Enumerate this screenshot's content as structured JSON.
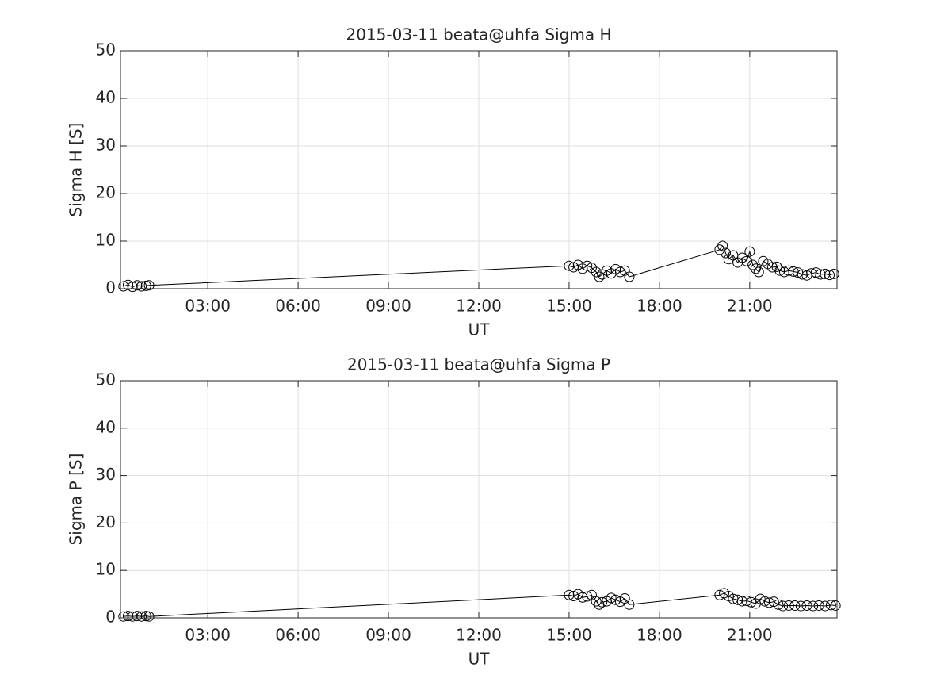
{
  "chart_data": [
    {
      "type": "line",
      "title": "2015-03-11  beata@uhfa Sigma H",
      "xlabel": "UT",
      "ylabel": "Sigma H [S]",
      "color": "#000000",
      "marker": "circle",
      "grid": true,
      "xlim": [
        0.1,
        23.9
      ],
      "ylim": [
        0,
        50
      ],
      "xticks": [
        {
          "value": 3,
          "label": "03:00"
        },
        {
          "value": 6,
          "label": "06:00"
        },
        {
          "value": 9,
          "label": "09:00"
        },
        {
          "value": 12,
          "label": "12:00"
        },
        {
          "value": 15,
          "label": "15:00"
        },
        {
          "value": 18,
          "label": "18:00"
        },
        {
          "value": 21,
          "label": "21:00"
        }
      ],
      "yticks": [
        0,
        10,
        20,
        30,
        40,
        50
      ],
      "x": [
        0.2,
        0.35,
        0.5,
        0.65,
        0.8,
        0.95,
        1.05,
        15.0,
        15.15,
        15.3,
        15.45,
        15.6,
        15.75,
        15.9,
        16.0,
        16.1,
        16.25,
        16.4,
        16.55,
        16.7,
        16.85,
        17.0,
        20.0,
        20.1,
        20.2,
        20.3,
        20.45,
        20.6,
        20.75,
        20.9,
        21.0,
        21.1,
        21.2,
        21.3,
        21.45,
        21.6,
        21.75,
        21.9,
        22.0,
        22.15,
        22.3,
        22.45,
        22.6,
        22.75,
        22.9,
        23.05,
        23.2,
        23.35,
        23.5,
        23.65,
        23.8
      ],
      "values": [
        0.5,
        0.8,
        0.4,
        0.7,
        0.5,
        0.6,
        0.7,
        4.8,
        4.5,
        5.0,
        4.2,
        4.8,
        4.4,
        3.5,
        2.5,
        3.0,
        3.8,
        3.2,
        4.1,
        3.5,
        3.8,
        2.5,
        8.2,
        9.0,
        7.5,
        6.2,
        7.0,
        5.5,
        6.5,
        5.8,
        7.8,
        5.0,
        4.2,
        3.5,
        5.8,
        5.2,
        4.5,
        4.6,
        3.8,
        3.5,
        3.8,
        3.6,
        3.4,
        3.0,
        2.8,
        3.2,
        3.4,
        3.0,
        3.1,
        2.9,
        3.1
      ]
    },
    {
      "type": "line",
      "title": "2015-03-11  beata@uhfa Sigma P",
      "xlabel": "UT",
      "ylabel": "Sigma P [S]",
      "color": "#000000",
      "marker": "circle",
      "grid": true,
      "xlim": [
        0.1,
        23.9
      ],
      "ylim": [
        0,
        50
      ],
      "xticks": [
        {
          "value": 3,
          "label": "03:00"
        },
        {
          "value": 6,
          "label": "06:00"
        },
        {
          "value": 9,
          "label": "09:00"
        },
        {
          "value": 12,
          "label": "12:00"
        },
        {
          "value": 15,
          "label": "15:00"
        },
        {
          "value": 18,
          "label": "18:00"
        },
        {
          "value": 21,
          "label": "21:00"
        }
      ],
      "yticks": [
        0,
        10,
        20,
        30,
        40,
        50
      ],
      "x": [
        0.2,
        0.35,
        0.5,
        0.65,
        0.8,
        0.95,
        1.05,
        15.0,
        15.15,
        15.3,
        15.45,
        15.6,
        15.75,
        15.9,
        16.0,
        16.1,
        16.25,
        16.4,
        16.55,
        16.7,
        16.85,
        17.0,
        20.0,
        20.15,
        20.3,
        20.45,
        20.6,
        20.75,
        20.9,
        21.05,
        21.2,
        21.35,
        21.5,
        21.65,
        21.8,
        21.95,
        22.1,
        22.3,
        22.5,
        22.7,
        22.9,
        23.1,
        23.3,
        23.5,
        23.7,
        23.85
      ],
      "values": [
        0.3,
        0.4,
        0.3,
        0.4,
        0.3,
        0.4,
        0.3,
        4.8,
        4.6,
        5.0,
        4.3,
        4.5,
        4.8,
        3.5,
        2.8,
        3.3,
        3.5,
        4.2,
        3.8,
        3.4,
        4.1,
        2.8,
        4.8,
        5.2,
        4.6,
        4.0,
        3.8,
        3.5,
        3.6,
        3.3,
        3.0,
        4.0,
        3.5,
        3.2,
        3.4,
        2.8,
        2.5,
        2.6,
        2.6,
        2.5,
        2.6,
        2.5,
        2.6,
        2.5,
        2.7,
        2.6
      ]
    }
  ]
}
